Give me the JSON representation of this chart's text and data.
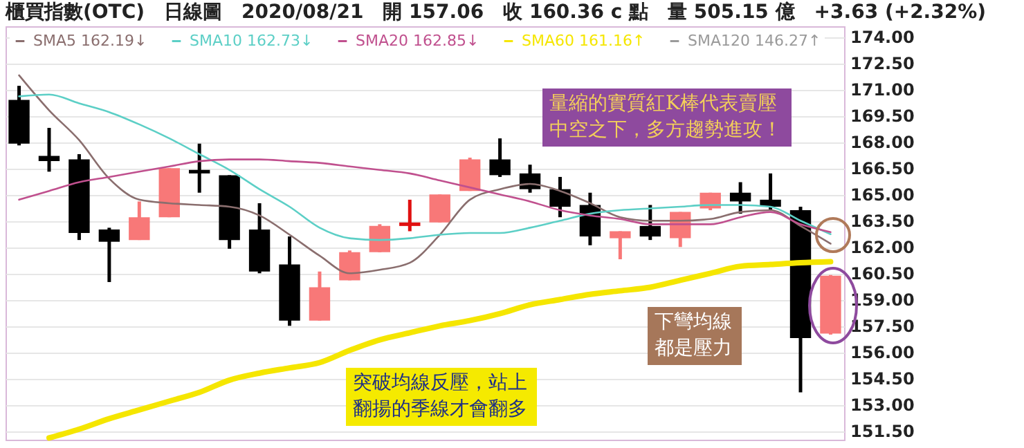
{
  "chart_data": {
    "type": "candlestick",
    "title": "櫃買指數(OTC)　日線圖　2020/08/21　開 157.06　收 160.36 c 點　量 505.15 億　+3.63 (+2.32%)",
    "categories": [
      null,
      null,
      null,
      null,
      null,
      null,
      null,
      null,
      null,
      null,
      null,
      null,
      null,
      null,
      null,
      null,
      null,
      null,
      null,
      null,
      null,
      null,
      null,
      null,
      null,
      null,
      null,
      null
    ],
    "ohlc": [
      [
        170.4,
        171.2,
        167.8,
        167.9
      ],
      [
        167.2,
        168.8,
        166.3,
        166.9
      ],
      [
        167.0,
        167.3,
        162.4,
        162.8
      ],
      [
        163.0,
        163.1,
        160.0,
        162.3
      ],
      [
        162.4,
        164.6,
        162.4,
        163.7
      ],
      [
        163.7,
        166.5,
        163.7,
        166.5
      ],
      [
        166.4,
        167.9,
        165.1,
        166.2
      ],
      [
        166.1,
        166.1,
        161.9,
        162.4
      ],
      [
        163.0,
        164.5,
        160.5,
        160.6
      ],
      [
        161.0,
        162.6,
        157.5,
        157.8
      ],
      [
        157.8,
        160.6,
        157.8,
        159.7
      ],
      [
        160.1,
        161.8,
        160.1,
        161.7
      ],
      [
        161.7,
        163.3,
        161.7,
        163.2
      ],
      [
        163.2,
        164.7,
        162.9,
        163.4
      ],
      [
        163.4,
        165.0,
        163.4,
        165.0
      ],
      [
        165.2,
        167.1,
        165.2,
        167.0
      ],
      [
        167.0,
        168.2,
        166.0,
        166.1
      ],
      [
        166.2,
        166.7,
        165.1,
        165.3
      ],
      [
        165.3,
        166.0,
        163.7,
        164.3
      ],
      [
        164.4,
        165.1,
        162.1,
        162.6
      ],
      [
        162.5,
        162.9,
        161.3,
        162.9
      ],
      [
        163.2,
        164.4,
        162.4,
        162.6
      ],
      [
        162.5,
        164.0,
        162.0,
        164.0
      ],
      [
        164.2,
        165.1,
        164.1,
        165.1
      ],
      [
        165.1,
        165.7,
        163.9,
        164.6
      ],
      [
        164.7,
        166.2,
        164.1,
        164.3
      ],
      [
        164.1,
        164.3,
        153.7,
        156.8
      ],
      [
        157.06,
        160.4,
        157.0,
        160.36
      ]
    ],
    "colors": [
      "#000000",
      "#000000",
      "#000000",
      "#000000",
      "#f87878",
      "#f87878",
      "#000000",
      "#000000",
      "#000000",
      "#000000",
      "#f87878",
      "#f87878",
      "#f87878",
      "#e01010",
      "#f87878",
      "#f87878",
      "#000000",
      "#000000",
      "#000000",
      "#000000",
      "#f87878",
      "#000000",
      "#f87878",
      "#f87878",
      "#000000",
      "#000000",
      "#000000",
      "#f87878"
    ],
    "series": [
      {
        "name": "SMA5 162.19↓",
        "type": "line",
        "color": "#8a6e6e",
        "values": [
          171.8,
          169.8,
          168.1,
          165.9,
          164.7,
          164.5,
          164.4,
          164.3,
          163.8,
          162.7,
          161.5,
          160.5,
          160.7,
          161.1,
          162.7,
          164.7,
          165.3,
          165.6,
          165.2,
          164.5,
          163.7,
          163.5,
          163.5,
          163.6,
          164.0,
          164.1,
          163.2,
          162.19
        ]
      },
      {
        "name": "SMA10 162.73↓",
        "type": "line",
        "color": "#5ccfc6",
        "values": [
          170.6,
          170.7,
          170.2,
          169.7,
          169.0,
          168.2,
          167.3,
          166.4,
          165.3,
          164.3,
          163.1,
          162.5,
          162.4,
          162.5,
          162.7,
          162.8,
          162.8,
          163.1,
          163.5,
          163.9,
          164.1,
          164.2,
          164.3,
          164.4,
          164.4,
          164.3,
          163.5,
          162.73
        ]
      },
      {
        "name": "SMA20 162.85↓",
        "type": "line",
        "color": "#c0508e",
        "values": [
          164.7,
          165.2,
          165.7,
          166.0,
          166.3,
          166.6,
          166.9,
          167.0,
          167.0,
          166.9,
          166.8,
          166.6,
          166.4,
          166.2,
          165.8,
          165.4,
          165.0,
          164.6,
          164.1,
          163.8,
          163.6,
          163.3,
          163.3,
          163.3,
          163.7,
          164.0,
          163.3,
          162.85
        ]
      },
      {
        "name": "SMA60 161.16↑",
        "type": "line",
        "color": "#f5e600",
        "values": [
          null,
          151.1,
          151.6,
          152.2,
          152.7,
          153.2,
          153.7,
          154.4,
          154.8,
          155.1,
          155.4,
          156.1,
          156.7,
          157.1,
          157.5,
          157.8,
          158.2,
          158.7,
          159.0,
          159.3,
          159.5,
          159.7,
          160.1,
          160.5,
          160.9,
          161.0,
          161.1,
          161.16
        ]
      },
      {
        "name": "SMA120 146.27↑",
        "type": "line",
        "color": "#9a9a9a",
        "values": [
          null,
          null,
          null,
          null,
          null,
          null,
          null,
          null,
          null,
          null,
          null,
          null,
          null,
          null,
          null,
          null,
          null,
          null,
          null,
          null,
          null,
          null,
          null,
          null,
          null,
          null,
          null,
          null
        ]
      }
    ],
    "ylim": [
      151,
      174.6
    ],
    "yticks": [
      {
        "value": 151.5,
        "label": "151.50"
      },
      {
        "value": 153,
        "label": "153.00"
      },
      {
        "value": 154.5,
        "label": "154.50"
      },
      {
        "value": 156,
        "label": "156.00"
      },
      {
        "value": 157.5,
        "label": "157.50"
      },
      {
        "value": 159,
        "label": "159.00"
      },
      {
        "value": 160.5,
        "label": "160.50"
      },
      {
        "value": 162,
        "label": "162.00"
      },
      {
        "value": 163.5,
        "label": "163.50"
      },
      {
        "value": 165,
        "label": "165.00"
      },
      {
        "value": 166.5,
        "label": "166.50"
      },
      {
        "value": 168,
        "label": "168.00"
      },
      {
        "value": 169.5,
        "label": "169.50"
      },
      {
        "value": 171,
        "label": "171.00"
      },
      {
        "value": 172.5,
        "label": "172.50"
      },
      {
        "value": 174,
        "label": "174.00"
      }
    ],
    "grid": "y",
    "legend": "top left",
    "tick_labels": "y",
    "annotations": [
      "量縮的實質紅K棒代表賣壓中空之下，多方趨勢進攻！",
      "下彎均線都是壓力",
      "突破均線反壓，站上翻揚的季線才會翻多"
    ]
  }
}
